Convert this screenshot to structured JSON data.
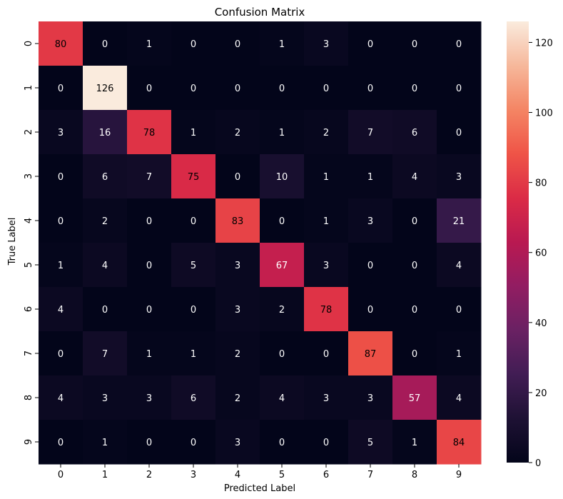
{
  "chart_data": {
    "type": "heatmap",
    "title": "Confusion Matrix",
    "xlabel": "Predicted Label",
    "ylabel": "True Label",
    "x_categories": [
      "0",
      "1",
      "2",
      "3",
      "4",
      "5",
      "6",
      "7",
      "8",
      "9"
    ],
    "y_categories": [
      "0",
      "1",
      "2",
      "3",
      "4",
      "5",
      "6",
      "7",
      "8",
      "9"
    ],
    "values": [
      [
        80,
        0,
        1,
        0,
        0,
        1,
        3,
        0,
        0,
        0
      ],
      [
        0,
        126,
        0,
        0,
        0,
        0,
        0,
        0,
        0,
        0
      ],
      [
        3,
        16,
        78,
        1,
        2,
        1,
        2,
        7,
        6,
        0
      ],
      [
        0,
        6,
        7,
        75,
        0,
        10,
        1,
        1,
        4,
        3
      ],
      [
        0,
        2,
        0,
        0,
        83,
        0,
        1,
        3,
        0,
        21
      ],
      [
        1,
        4,
        0,
        5,
        3,
        67,
        3,
        0,
        0,
        4
      ],
      [
        4,
        0,
        0,
        0,
        3,
        2,
        78,
        0,
        0,
        0
      ],
      [
        0,
        7,
        1,
        1,
        2,
        0,
        0,
        87,
        0,
        1
      ],
      [
        4,
        3,
        3,
        6,
        2,
        4,
        3,
        3,
        57,
        4
      ],
      [
        0,
        1,
        0,
        0,
        3,
        0,
        0,
        5,
        1,
        84
      ]
    ],
    "colormap": "rocket",
    "vmin": 0,
    "vmax": 126,
    "colorbar_ticks": [
      0,
      20,
      40,
      60,
      80,
      100,
      120
    ]
  }
}
